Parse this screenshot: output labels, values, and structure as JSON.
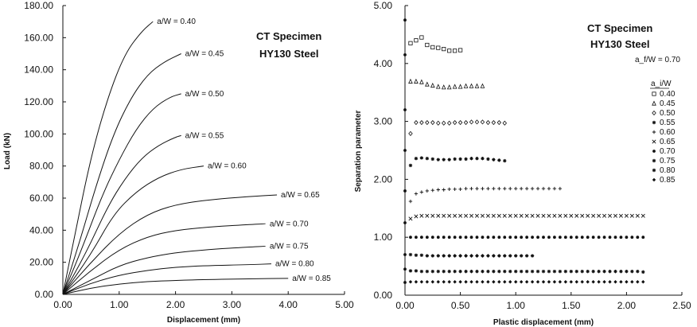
{
  "chart_data": [
    {
      "type": "line",
      "xlabel": "Displacement (mm)",
      "ylabel": "Load (kN)",
      "xlim": [
        0,
        5
      ],
      "ylim": [
        0,
        180
      ],
      "xticks": [
        "0.00",
        "1.00",
        "2.00",
        "3.00",
        "4.00",
        "5.00"
      ],
      "yticks": [
        "0.00",
        "20.00",
        "40.00",
        "60.00",
        "80.00",
        "100.00",
        "120.00",
        "140.00",
        "160.00",
        "180.00"
      ],
      "annotations": [
        "CT Specimen",
        "HY130 Steel"
      ],
      "series": [
        {
          "name": "a/W = 0.40",
          "x": [
            0,
            0.2,
            0.5,
            0.8,
            1.1,
            1.4,
            1.6
          ],
          "y": [
            0,
            35,
            86,
            123,
            150,
            164,
            170
          ]
        },
        {
          "name": "a/W = 0.45",
          "x": [
            0,
            0.3,
            0.6,
            0.9,
            1.2,
            1.5,
            1.8,
            2.1
          ],
          "y": [
            0,
            33,
            69,
            100,
            122,
            137,
            145,
            150
          ]
        },
        {
          "name": "a/W = 0.50",
          "x": [
            0,
            0.3,
            0.7,
            1.0,
            1.3,
            1.6,
            1.9,
            2.1
          ],
          "y": [
            0,
            25,
            62,
            84,
            103,
            116,
            123,
            125
          ]
        },
        {
          "name": "a/W = 0.55",
          "x": [
            0,
            0.4,
            0.8,
            1.1,
            1.4,
            1.7,
            2.0,
            2.1
          ],
          "y": [
            0,
            25,
            55,
            72,
            85,
            93,
            98,
            99
          ]
        },
        {
          "name": "a/W = 0.60",
          "x": [
            0,
            0.5,
            0.9,
            1.3,
            1.7,
            2.1,
            2.5
          ],
          "y": [
            0,
            25,
            50,
            64,
            73,
            78,
            80
          ]
        },
        {
          "name": "a/W = 0.65",
          "x": [
            0,
            0.5,
            1.0,
            1.5,
            2.0,
            2.6,
            3.3,
            3.8
          ],
          "y": [
            0,
            20,
            38,
            50,
            56,
            59,
            61,
            62
          ]
        },
        {
          "name": "a/W = 0.70",
          "x": [
            0,
            0.5,
            1.0,
            1.5,
            2.0,
            2.6,
            3.3,
            3.6
          ],
          "y": [
            0,
            15,
            28,
            36,
            40,
            42,
            43.5,
            44
          ]
        },
        {
          "name": "a/W = 0.75",
          "x": [
            0,
            0.5,
            1.0,
            1.5,
            2.0,
            2.6,
            3.3,
            3.6
          ],
          "y": [
            0,
            9,
            18,
            23,
            26,
            28,
            29.5,
            30
          ]
        },
        {
          "name": "a/W = 0.80",
          "x": [
            0,
            0.5,
            1.0,
            1.5,
            2.0,
            2.6,
            3.3,
            3.7
          ],
          "y": [
            0,
            7,
            12,
            15,
            17,
            18,
            18.5,
            19
          ]
        },
        {
          "name": "a/W = 0.85",
          "x": [
            0,
            0.5,
            1.0,
            1.5,
            2.0,
            2.6,
            3.3,
            4.0
          ],
          "y": [
            0,
            4,
            6.5,
            8,
            8.7,
            9.3,
            9.7,
            10
          ]
        }
      ]
    },
    {
      "type": "scatter",
      "xlabel": "Plastic displacement (mm)",
      "ylabel": "Separation parameter",
      "xlim": [
        0,
        2.5
      ],
      "ylim": [
        0,
        5
      ],
      "xticks": [
        "0.00",
        "0.50",
        "1.00",
        "1.50",
        "2.00",
        "2.50"
      ],
      "yticks": [
        "0.00",
        "1.00",
        "2.00",
        "3.00",
        "4.00",
        "5.00"
      ],
      "annotations": [
        "CT Specimen",
        "HY130 Steel"
      ],
      "af_note": "a_f/W = 0.70",
      "legend_header": "a_i/W",
      "series": [
        {
          "name": "0.40",
          "marker": "square",
          "x": [
            0.05,
            0.1,
            0.15,
            0.2,
            0.25,
            0.3,
            0.35,
            0.4,
            0.45,
            0.5
          ],
          "y": [
            4.35,
            4.4,
            4.45,
            4.32,
            4.28,
            4.27,
            4.25,
            4.22,
            4.22,
            4.23
          ]
        },
        {
          "name": "0.45",
          "marker": "triangle",
          "x": [
            0.05,
            0.1,
            0.15,
            0.2,
            0.25,
            0.3,
            0.35,
            0.4,
            0.45,
            0.5,
            0.55,
            0.6,
            0.65,
            0.7
          ],
          "y": [
            3.69,
            3.69,
            3.68,
            3.64,
            3.62,
            3.6,
            3.59,
            3.59,
            3.6,
            3.6,
            3.61,
            3.61,
            3.61,
            3.61
          ]
        },
        {
          "name": "0.50",
          "marker": "diamond",
          "x": [
            0.05,
            0.1,
            0.15,
            0.2,
            0.25,
            0.3,
            0.35,
            0.4,
            0.45,
            0.5,
            0.55,
            0.6,
            0.65,
            0.7,
            0.75,
            0.8,
            0.85,
            0.9
          ],
          "y": [
            2.79,
            2.98,
            2.98,
            2.98,
            2.98,
            2.97,
            2.97,
            2.97,
            2.98,
            2.98,
            2.98,
            2.99,
            2.99,
            2.99,
            2.98,
            2.98,
            2.98,
            2.97
          ]
        },
        {
          "name": "0.55",
          "marker": "asterisk",
          "x": [
            0.05,
            0.1,
            0.15,
            0.2,
            0.25,
            0.3,
            0.35,
            0.4,
            0.45,
            0.5,
            0.55,
            0.6,
            0.65,
            0.7,
            0.75,
            0.8,
            0.85,
            0.9
          ],
          "y": [
            2.24,
            2.36,
            2.37,
            2.36,
            2.35,
            2.34,
            2.34,
            2.34,
            2.35,
            2.35,
            2.35,
            2.36,
            2.36,
            2.36,
            2.35,
            2.34,
            2.33,
            2.32
          ]
        },
        {
          "name": "0.60",
          "marker": "plus",
          "x": [
            0.05,
            0.1,
            0.15,
            0.2,
            0.25,
            0.3,
            0.35,
            0.4,
            0.45,
            0.5,
            0.55,
            0.6,
            0.65,
            0.7,
            0.75,
            0.8,
            0.85,
            0.9,
            0.95,
            1.0,
            1.05,
            1.1,
            1.15,
            1.2,
            1.25,
            1.3,
            1.35,
            1.4
          ],
          "y": [
            1.62,
            1.75,
            1.78,
            1.8,
            1.81,
            1.82,
            1.82,
            1.83,
            1.83,
            1.83,
            1.84,
            1.84,
            1.84,
            1.84,
            1.84,
            1.84,
            1.84,
            1.84,
            1.84,
            1.84,
            1.84,
            1.84,
            1.84,
            1.84,
            1.84,
            1.84,
            1.84,
            1.84
          ]
        },
        {
          "name": "0.65",
          "marker": "cross",
          "x": [
            0.05,
            0.1,
            0.15,
            0.2,
            0.25,
            0.3,
            0.35,
            0.4,
            0.45,
            0.5,
            0.55,
            0.6,
            0.65,
            0.7,
            0.75,
            0.8,
            0.85,
            0.9,
            0.95,
            1.0,
            1.05,
            1.1,
            1.15,
            1.2,
            1.25,
            1.3,
            1.35,
            1.4,
            1.45,
            1.5,
            1.55,
            1.6,
            1.65,
            1.7,
            1.75,
            1.8,
            1.85,
            1.9,
            1.95,
            2.0,
            2.05,
            2.1,
            2.15
          ],
          "y": [
            1.32,
            1.36,
            1.37,
            1.37,
            1.37,
            1.37,
            1.37,
            1.37,
            1.37,
            1.37,
            1.37,
            1.37,
            1.37,
            1.37,
            1.37,
            1.37,
            1.37,
            1.37,
            1.37,
            1.37,
            1.37,
            1.37,
            1.37,
            1.37,
            1.37,
            1.37,
            1.37,
            1.37,
            1.37,
            1.37,
            1.37,
            1.37,
            1.37,
            1.37,
            1.37,
            1.37,
            1.37,
            1.37,
            1.37,
            1.37,
            1.37,
            1.37,
            1.37
          ]
        },
        {
          "name": "0.70",
          "marker": "dot",
          "x": [
            0.05,
            0.1,
            0.15,
            0.2,
            0.25,
            0.3,
            0.35,
            0.4,
            0.45,
            0.5,
            0.55,
            0.6,
            0.65,
            0.7,
            0.75,
            0.8,
            0.85,
            0.9,
            0.95,
            1.0,
            1.05,
            1.1,
            1.15,
            1.2,
            1.25,
            1.3,
            1.35,
            1.4,
            1.45,
            1.5,
            1.55,
            1.6,
            1.65,
            1.7,
            1.75,
            1.8,
            1.85,
            1.9,
            1.95,
            2.0,
            2.05,
            2.1,
            2.15
          ],
          "y": [
            1.0,
            1.0,
            1.0,
            1.0,
            1.0,
            1.0,
            1.0,
            1.0,
            1.0,
            1.0,
            1.0,
            1.0,
            1.0,
            1.0,
            1.0,
            1.0,
            1.0,
            1.0,
            1.0,
            1.0,
            1.0,
            1.0,
            1.0,
            1.0,
            1.0,
            1.0,
            1.0,
            1.0,
            1.0,
            1.0,
            1.0,
            1.0,
            1.0,
            1.0,
            1.0,
            1.0,
            1.0,
            1.0,
            1.0,
            1.0,
            1.0,
            1.0,
            1.0
          ]
        },
        {
          "name": "0.75",
          "marker": "asterisk",
          "x": [
            0.05,
            0.1,
            0.15,
            0.2,
            0.25,
            0.3,
            0.35,
            0.4,
            0.45,
            0.5,
            0.55,
            0.6,
            0.65,
            0.7,
            0.75,
            0.8,
            0.85,
            0.9,
            0.95,
            1.0,
            1.05,
            1.1,
            1.15
          ],
          "y": [
            0.7,
            0.69,
            0.69,
            0.68,
            0.68,
            0.68,
            0.68,
            0.68,
            0.68,
            0.68,
            0.68,
            0.68,
            0.68,
            0.68,
            0.68,
            0.68,
            0.68,
            0.68,
            0.68,
            0.68,
            0.68,
            0.68,
            0.68
          ]
        },
        {
          "name": "0.80",
          "marker": "asterisk",
          "x": [
            0.05,
            0.1,
            0.15,
            0.2,
            0.25,
            0.3,
            0.35,
            0.4,
            0.45,
            0.5,
            0.55,
            0.6,
            0.65,
            0.7,
            0.75,
            0.8,
            0.85,
            0.9,
            0.95,
            1.0,
            1.05,
            1.1,
            1.15,
            1.2,
            1.25,
            1.3,
            1.35,
            1.4,
            1.45,
            1.5,
            1.55,
            1.6,
            1.65,
            1.7,
            1.75,
            1.8,
            1.85,
            1.9,
            1.95,
            2.0,
            2.05,
            2.1,
            2.15
          ],
          "y": [
            0.42,
            0.42,
            0.41,
            0.41,
            0.41,
            0.41,
            0.41,
            0.41,
            0.41,
            0.41,
            0.41,
            0.41,
            0.41,
            0.41,
            0.41,
            0.41,
            0.41,
            0.41,
            0.41,
            0.41,
            0.41,
            0.41,
            0.41,
            0.41,
            0.41,
            0.41,
            0.41,
            0.41,
            0.41,
            0.41,
            0.41,
            0.41,
            0.41,
            0.41,
            0.41,
            0.41,
            0.41,
            0.41,
            0.41,
            0.41,
            0.41,
            0.41,
            0.4
          ]
        },
        {
          "name": "0.85",
          "marker": "diamond-filled",
          "x": [
            0.05,
            0.1,
            0.15,
            0.2,
            0.25,
            0.3,
            0.35,
            0.4,
            0.45,
            0.5,
            0.55,
            0.6,
            0.65,
            0.7,
            0.75,
            0.8,
            0.85,
            0.9,
            0.95,
            1.0,
            1.05,
            1.1,
            1.15,
            1.2,
            1.25,
            1.3,
            1.35,
            1.4,
            1.45,
            1.5,
            1.55,
            1.6,
            1.65,
            1.7,
            1.75,
            1.8,
            1.85,
            1.9,
            1.95,
            2.0,
            2.05,
            2.1,
            2.15
          ],
          "y": [
            0.23,
            0.23,
            0.23,
            0.23,
            0.23,
            0.23,
            0.23,
            0.23,
            0.23,
            0.23,
            0.23,
            0.23,
            0.23,
            0.23,
            0.23,
            0.23,
            0.23,
            0.23,
            0.23,
            0.23,
            0.23,
            0.23,
            0.23,
            0.23,
            0.23,
            0.23,
            0.23,
            0.23,
            0.23,
            0.23,
            0.23,
            0.23,
            0.23,
            0.23,
            0.23,
            0.23,
            0.23,
            0.23,
            0.23,
            0.23,
            0.23,
            0.23,
            0.23
          ]
        },
        {
          "name": "",
          "marker": "dot",
          "x": [
            0,
            0,
            0,
            0,
            0,
            0,
            0,
            0,
            0
          ],
          "y": [
            4.75,
            4.15,
            3.2,
            2.5,
            1.8,
            1.25,
            0.7,
            0.45,
            0.22
          ]
        }
      ]
    }
  ]
}
